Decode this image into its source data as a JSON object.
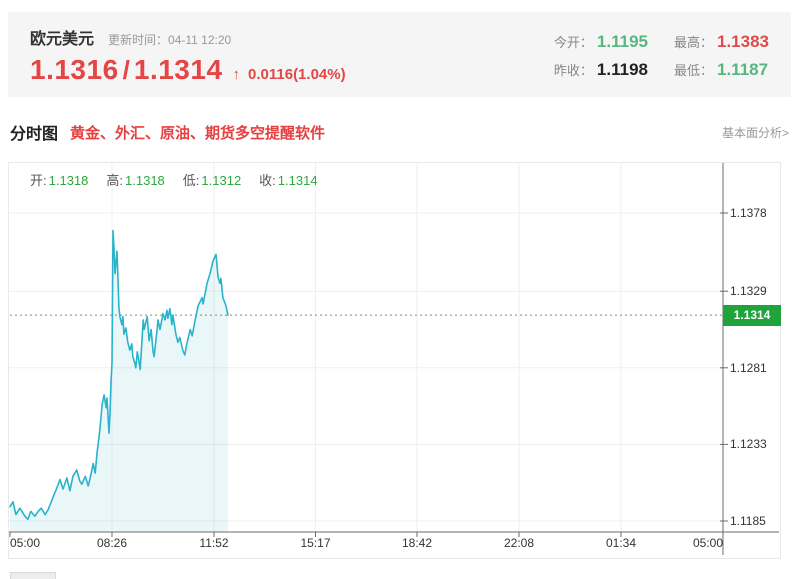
{
  "header": {
    "symbol": "欧元美元",
    "update_label": "更新时间：04-11 12:20",
    "bid": "1.1316",
    "separator": "/",
    "ask": "1.1314",
    "change_arrow": "↑",
    "change_text": "0.0116(1.04%)",
    "price_color": "#e64545",
    "stats": [
      {
        "label": "今开：",
        "value": "1.1195",
        "color": "#55b87f"
      },
      {
        "label": "最高：",
        "value": "1.1383",
        "color": "#e04b4b"
      },
      {
        "label": "昨收：",
        "value": "1.1198",
        "color": "#222222"
      },
      {
        "label": "最低：",
        "value": "1.1187",
        "color": "#55b87f"
      }
    ]
  },
  "toolbar": {
    "tab": "分时图",
    "promo": "黄金、外汇、原油、期货多空提醒软件",
    "right_link": "基本面分析>"
  },
  "legend": {
    "items": [
      {
        "label": "开:",
        "value": "1.1318"
      },
      {
        "label": "高:",
        "value": "1.1318"
      },
      {
        "label": "低:",
        "value": "1.1312"
      },
      {
        "label": "收:",
        "value": "1.1314"
      }
    ]
  },
  "chart_data": {
    "type": "area",
    "title": "欧元美元分时图",
    "xlabel": "",
    "ylabel": "",
    "y_ticks": [
      "1.1378",
      "1.1329",
      "1.1281",
      "1.1233",
      "1.1185"
    ],
    "ylim": [
      1.1178,
      1.141
    ],
    "x_total_minutes": 1440,
    "x_ticks": [
      {
        "label": "05:00",
        "minute": 0
      },
      {
        "label": "08:26",
        "minute": 206
      },
      {
        "label": "11:52",
        "minute": 412
      },
      {
        "label": "15:17",
        "minute": 617
      },
      {
        "label": "18:42",
        "minute": 822
      },
      {
        "label": "22:08",
        "minute": 1028
      },
      {
        "label": "01:34",
        "minute": 1234
      },
      {
        "label": "05:00",
        "minute": 1440
      }
    ],
    "last_price": "1.1314",
    "last_price_value": 1.1314,
    "series": [
      {
        "name": "price",
        "points": [
          [
            0,
            1.1194
          ],
          [
            6,
            1.1197
          ],
          [
            12,
            1.1189
          ],
          [
            20,
            1.1193
          ],
          [
            30,
            1.1188
          ],
          [
            36,
            1.1186
          ],
          [
            42,
            1.1191
          ],
          [
            50,
            1.1188
          ],
          [
            57,
            1.1191
          ],
          [
            63,
            1.1193
          ],
          [
            71,
            1.1189
          ],
          [
            77,
            1.1192
          ],
          [
            87,
            1.12
          ],
          [
            95,
            1.1206
          ],
          [
            101,
            1.1211
          ],
          [
            107,
            1.1205
          ],
          [
            115,
            1.1212
          ],
          [
            121,
            1.1204
          ],
          [
            127,
            1.1213
          ],
          [
            135,
            1.1217
          ],
          [
            141,
            1.121
          ],
          [
            145,
            1.1208
          ],
          [
            152,
            1.1213
          ],
          [
            158,
            1.1207
          ],
          [
            162,
            1.1212
          ],
          [
            168,
            1.1221
          ],
          [
            172,
            1.1215
          ],
          [
            176,
            1.1228
          ],
          [
            180,
            1.1238
          ],
          [
            183,
            1.1247
          ],
          [
            186,
            1.1258
          ],
          [
            190,
            1.1264
          ],
          [
            194,
            1.1256
          ],
          [
            196,
            1.1262
          ],
          [
            200,
            1.124
          ],
          [
            202,
            1.1252
          ],
          [
            204,
            1.1272
          ],
          [
            206,
            1.1284
          ],
          [
            208,
            1.1367
          ],
          [
            210,
            1.1356
          ],
          [
            212,
            1.134
          ],
          [
            216,
            1.1354
          ],
          [
            218,
            1.1338
          ],
          [
            220,
            1.1319
          ],
          [
            222,
            1.1313
          ],
          [
            226,
            1.1308
          ],
          [
            228,
            1.1313
          ],
          [
            230,
            1.1302
          ],
          [
            234,
            1.1306
          ],
          [
            238,
            1.1297
          ],
          [
            242,
            1.1292
          ],
          [
            246,
            1.1296
          ],
          [
            248,
            1.1288
          ],
          [
            252,
            1.1284
          ],
          [
            254,
            1.1281
          ],
          [
            257,
            1.1291
          ],
          [
            261,
            1.1284
          ],
          [
            263,
            1.128
          ],
          [
            269,
            1.1311
          ],
          [
            271,
            1.1305
          ],
          [
            277,
            1.1313
          ],
          [
            281,
            1.1298
          ],
          [
            285,
            1.1305
          ],
          [
            289,
            1.1291
          ],
          [
            291,
            1.1288
          ],
          [
            297,
            1.1305
          ],
          [
            299,
            1.1311
          ],
          [
            303,
            1.1305
          ],
          [
            309,
            1.1315
          ],
          [
            313,
            1.1311
          ],
          [
            317,
            1.1317
          ],
          [
            319,
            1.1312
          ],
          [
            323,
            1.1318
          ],
          [
            327,
            1.1308
          ],
          [
            329,
            1.1314
          ],
          [
            335,
            1.1302
          ],
          [
            339,
            1.1297
          ],
          [
            343,
            1.13
          ],
          [
            349,
            1.1292
          ],
          [
            353,
            1.1289
          ],
          [
            357,
            1.1296
          ],
          [
            364,
            1.1305
          ],
          [
            368,
            1.1301
          ],
          [
            374,
            1.1311
          ],
          [
            380,
            1.132
          ],
          [
            388,
            1.1325
          ],
          [
            390,
            1.1321
          ],
          [
            398,
            1.1334
          ],
          [
            404,
            1.134
          ],
          [
            410,
            1.1348
          ],
          [
            416,
            1.1352
          ],
          [
            420,
            1.1338
          ],
          [
            424,
            1.1334
          ],
          [
            426,
            1.1337
          ],
          [
            430,
            1.1325
          ],
          [
            436,
            1.132
          ],
          [
            440,
            1.1314
          ]
        ]
      }
    ],
    "colors": {
      "line": "#2ab3c9",
      "fill": "rgba(43,177,201,0.10)",
      "last_price_line": "#6b9e54",
      "tag_bg": "#1fa43c",
      "grid": "#efefef",
      "axis": "#6b6b6b"
    },
    "legend_position": "top-left",
    "grid": true
  }
}
